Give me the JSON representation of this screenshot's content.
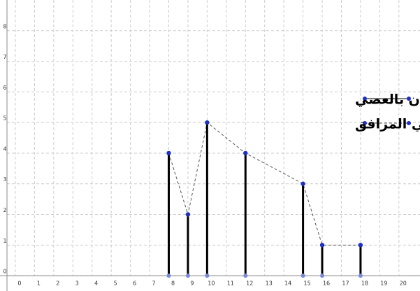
{
  "chart_data": {
    "type": "stick",
    "x": [
      8,
      9,
      10,
      12,
      15,
      16,
      18
    ],
    "values": [
      4,
      2,
      5,
      4,
      3,
      1,
      1
    ],
    "legend": [
      "مبيان بالعصي",
      "المضلع الاحصائي المرافق"
    ],
    "stick_color": "#000000",
    "marker_color": "#1f2fbf",
    "polygon_color": "#555555",
    "xlim": [
      -0.8,
      21.1
    ],
    "ylim": [
      -0.5,
      9
    ],
    "xticks": [
      0,
      1,
      2,
      3,
      4,
      5,
      6,
      7,
      8,
      9,
      10,
      11,
      12,
      13,
      14,
      15,
      16,
      17,
      18,
      19,
      20
    ],
    "yticks": [
      0,
      1,
      2,
      3,
      4,
      5,
      6,
      7,
      8
    ],
    "grid": true
  }
}
